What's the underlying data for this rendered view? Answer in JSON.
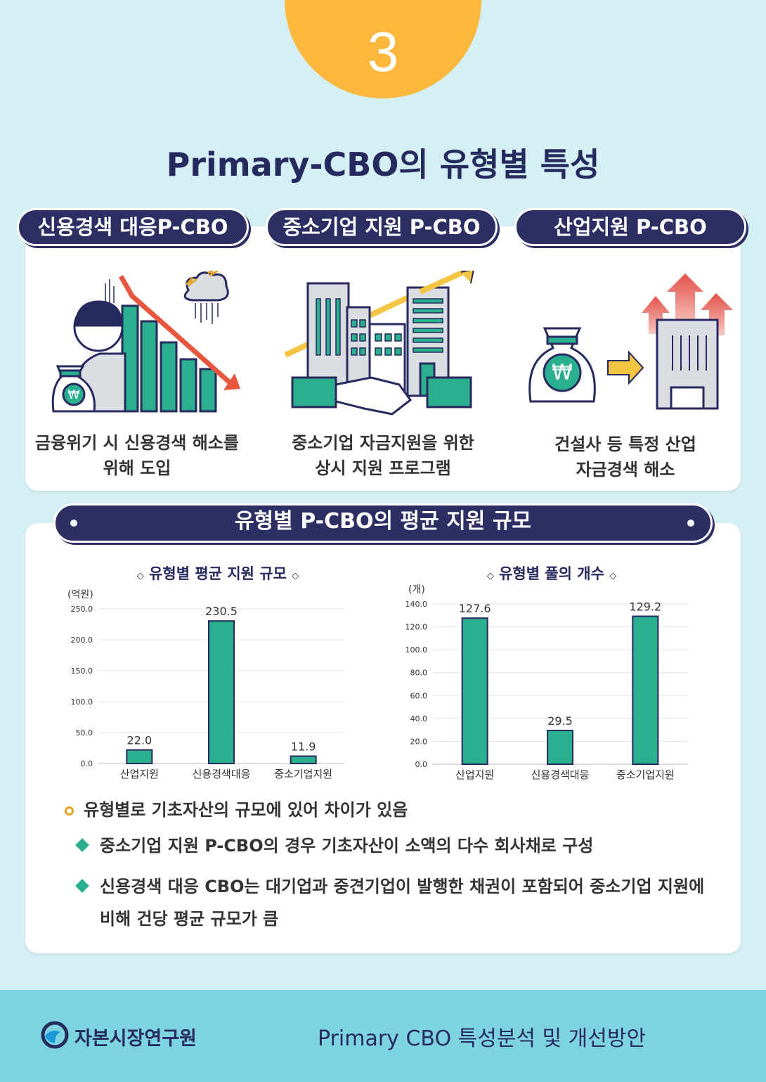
{
  "badge_number": "3",
  "main_title": "Primary-CBO의 유형별 특성",
  "types": [
    {
      "tab": "신용경색 대응P-CBO",
      "desc1": "금융위기 시 신용경색 해소를",
      "desc2": "위해 도입"
    },
    {
      "tab": "중소기업 지원 P-CBO",
      "desc1": "중소기업 자금지원을 위한",
      "desc2": "상시 지원 프로그램"
    },
    {
      "tab": "산업지원 P-CBO",
      "desc1": "건설사 등 특정 산업",
      "desc2": "자금경색 해소"
    }
  ],
  "section_title": "유형별 P-CBO의 평균 지원 규모",
  "colors": {
    "navy": "#2c2e64",
    "teal": "#2bb08f",
    "orange": "#fbb83c",
    "footer": "#7dd4e0"
  },
  "chart_data": [
    {
      "type": "bar",
      "title": "유형별 평균 지원 규모",
      "ylabel": "(억원)",
      "categories": [
        "산업지원",
        "신용경색대응",
        "중소기업지원"
      ],
      "values": [
        22.0,
        230.5,
        11.9
      ],
      "value_labels": [
        "22.0",
        "230.5",
        "11.9"
      ],
      "yticks": [
        "0.0",
        "50.0",
        "100.0",
        "150.0",
        "200.0",
        "250.0"
      ],
      "ylim": [
        0,
        250
      ],
      "grid": true
    },
    {
      "type": "bar",
      "title": "유형별 풀의 개수",
      "ylabel": "(개)",
      "categories": [
        "산업지원",
        "신용경색대응",
        "중소기업지원"
      ],
      "values": [
        127.6,
        29.5,
        129.2
      ],
      "value_labels": [
        "127.6",
        "29.5",
        "129.2"
      ],
      "yticks": [
        "0.0",
        "20.0",
        "40.0",
        "60.0",
        "80.0",
        "100.0",
        "120.0",
        "140.0"
      ],
      "ylim": [
        0,
        140
      ],
      "grid": true
    }
  ],
  "bullets": {
    "main": "유형별로 기초자산의 규모에 있어 차이가 있음",
    "sub1": "중소기업 지원 P-CBO의 경우 기초자산이 소액의 다수 회사채로 구성",
    "sub2_line1": "신용경색 대응 CBO는 대기업과 중견기업이 발행한 채권이 포함되어 중소기업 지원에",
    "sub2_line2": "비해 건당 평균 규모가 큼"
  },
  "footer": {
    "org": "자본시장연구원",
    "title": "Primary CBO 특성분석 및 개선방안"
  }
}
